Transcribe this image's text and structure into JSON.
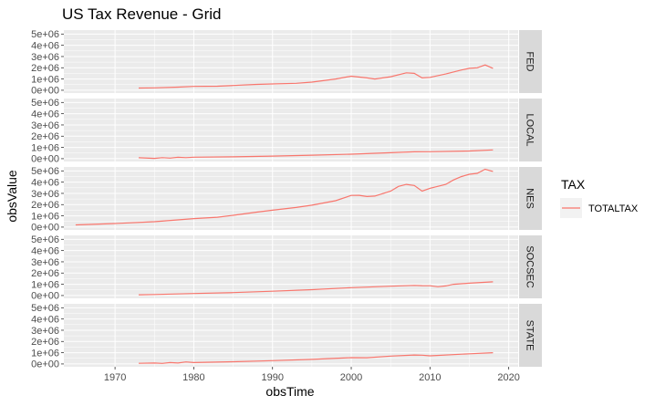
{
  "chart_data": {
    "type": "line",
    "title": "US Tax Revenue - Grid",
    "xlabel": "obsTime",
    "ylabel": "obsValue",
    "xlim": [
      1963.5,
      2021.2
    ],
    "ylim": [
      -250000,
      5350000
    ],
    "x_ticks": [
      1970,
      1980,
      1990,
      2000,
      2010,
      2020
    ],
    "y_ticks": [
      0,
      1000000,
      2000000,
      3000000,
      4000000,
      5000000
    ],
    "y_tick_labels": [
      "0e+00",
      "1e+06",
      "2e+06",
      "3e+06",
      "4e+06",
      "5e+06"
    ],
    "grid": true,
    "facet_by": "TAX",
    "legend": {
      "title": "TAX",
      "placement": "right",
      "entries": [
        {
          "name": "TOTALTAX",
          "color": "#F8766D"
        }
      ]
    },
    "panels": [
      {
        "strip": "FED",
        "x": [
          1973,
          1975,
          1978,
          1980,
          1983,
          1985,
          1988,
          1990,
          1993,
          1995,
          1998,
          2000,
          2002,
          2003,
          2005,
          2007,
          2008,
          2009,
          2010,
          2012,
          2014,
          2015,
          2016,
          2017,
          2018
        ],
        "values": [
          200000,
          210000,
          280000,
          340000,
          360000,
          420000,
          520000,
          560000,
          620000,
          720000,
          1000000,
          1250000,
          1100000,
          1000000,
          1200000,
          1550000,
          1500000,
          1100000,
          1150000,
          1450000,
          1800000,
          1950000,
          2000000,
          2250000,
          1950000
        ]
      },
      {
        "strip": "LOCAL",
        "x": [
          1973,
          1975,
          1976,
          1977,
          1978,
          1979,
          1980,
          1985,
          1990,
          1995,
          2000,
          2005,
          2008,
          2010,
          2015,
          2018
        ],
        "values": [
          80000,
          30000,
          90000,
          50000,
          120000,
          90000,
          130000,
          160000,
          230000,
          310000,
          400000,
          530000,
          610000,
          620000,
          680000,
          780000
        ]
      },
      {
        "strip": "NES",
        "x": [
          1965,
          1970,
          1975,
          1980,
          1983,
          1985,
          1988,
          1990,
          1993,
          1995,
          1998,
          2000,
          2001,
          2002,
          2003,
          2005,
          2006,
          2007,
          2008,
          2009,
          2010,
          2012,
          2013,
          2014,
          2015,
          2016,
          2017,
          2018
        ],
        "values": [
          200000,
          320000,
          480000,
          760000,
          880000,
          1050000,
          1330000,
          1500000,
          1750000,
          1950000,
          2350000,
          2820000,
          2830000,
          2720000,
          2760000,
          3200000,
          3620000,
          3800000,
          3700000,
          3200000,
          3450000,
          3800000,
          4200000,
          4500000,
          4700000,
          4780000,
          5150000,
          4950000
        ]
      },
      {
        "strip": "SOCSEC",
        "x": [
          1973,
          1975,
          1980,
          1985,
          1990,
          1995,
          2000,
          2005,
          2008,
          2009,
          2010,
          2011,
          2012,
          2013,
          2015,
          2018
        ],
        "values": [
          70000,
          90000,
          180000,
          260000,
          380000,
          520000,
          700000,
          830000,
          900000,
          880000,
          870000,
          780000,
          850000,
          1000000,
          1100000,
          1220000
        ]
      },
      {
        "strip": "STATE",
        "x": [
          1973,
          1975,
          1976,
          1977,
          1978,
          1979,
          1980,
          1985,
          1990,
          1995,
          2000,
          2002,
          2005,
          2008,
          2009,
          2010,
          2015,
          2018
        ],
        "values": [
          60000,
          80000,
          50000,
          120000,
          80000,
          180000,
          120000,
          200000,
          290000,
          410000,
          560000,
          550000,
          700000,
          800000,
          780000,
          720000,
          900000,
          1000000
        ]
      }
    ]
  }
}
